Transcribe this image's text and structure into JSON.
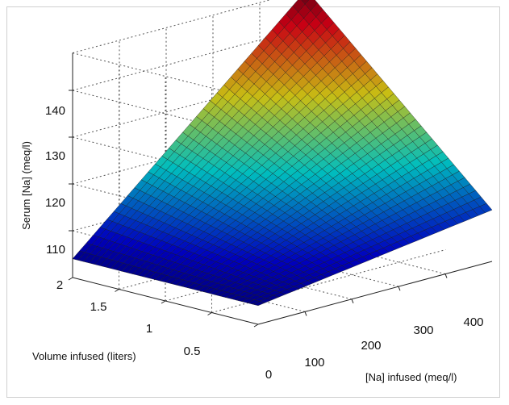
{
  "chart_data": {
    "type": "surface",
    "title": "",
    "xlabel": "[Na] infused (meq/l)",
    "ylabel": "Volume infused (liters)",
    "zlabel": "Serum [Na] (meq/l)",
    "x_ticks": [
      "100",
      "200",
      "300",
      "400"
    ],
    "y_ticks": [
      "0",
      "0.5",
      "1",
      "1.5",
      "2"
    ],
    "z_ticks": [
      "110",
      "120",
      "130",
      "140"
    ],
    "x_range": [
      0,
      500
    ],
    "y_range": [
      0,
      2
    ],
    "z_range": [
      100,
      148
    ],
    "grid": true,
    "colormap": "jet",
    "surface_corners": [
      {
        "x": 0,
        "y": 0,
        "z": 104
      },
      {
        "x": 500,
        "y": 0,
        "z": 111
      },
      {
        "x": 0,
        "y": 2,
        "z": 104
      },
      {
        "x": 500,
        "y": 2,
        "z": 148
      }
    ]
  }
}
